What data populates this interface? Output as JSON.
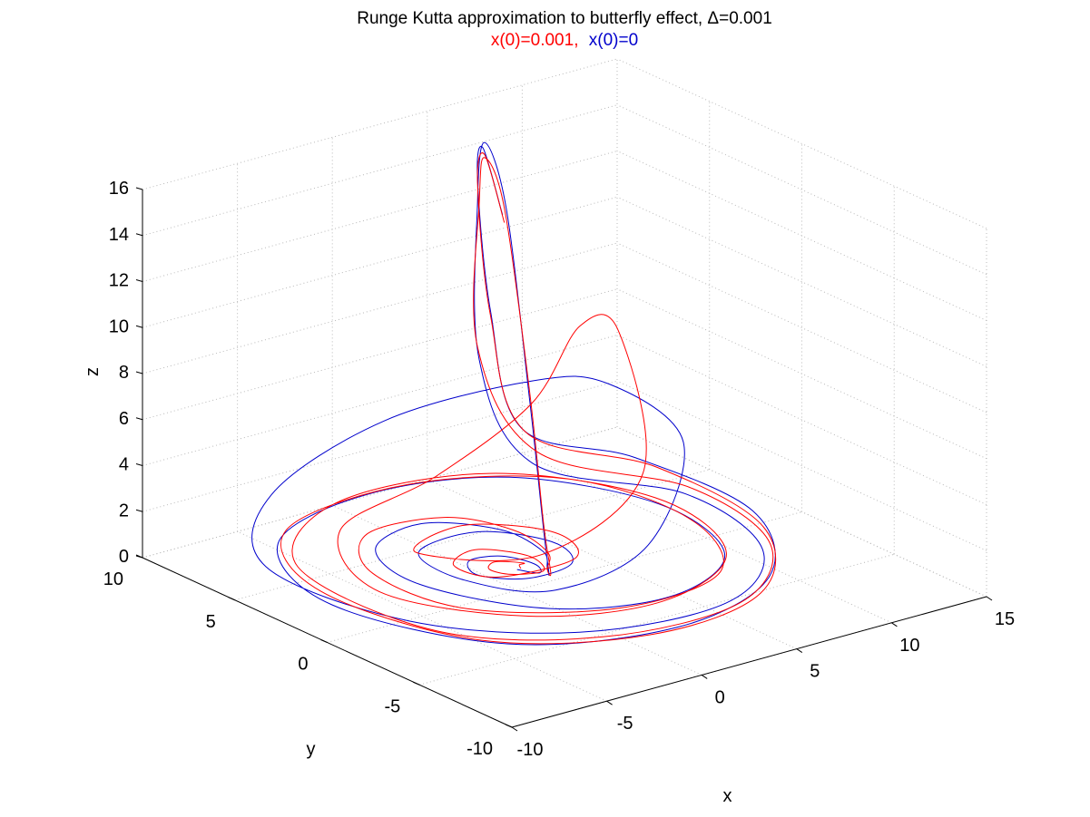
{
  "chart_data": {
    "type": "line3d",
    "title": "Runge Kutta approximation to butterfly effect, Δ=0.001",
    "subtitle": [
      {
        "text": "x(0)=0.001,",
        "color": "#ff0000"
      },
      {
        "text": "x(0)=0",
        "color": "#0000cc"
      }
    ],
    "xlabel": "x",
    "ylabel": "y",
    "zlabel": "z",
    "xlim": [
      -10,
      15
    ],
    "ylim": [
      -10,
      10
    ],
    "zlim": [
      0,
      16
    ],
    "xticks": [
      "-10",
      "-5",
      "0",
      "5",
      "10",
      "15"
    ],
    "yticks": [
      "-10",
      "-5",
      "0",
      "5",
      "10"
    ],
    "zticks": [
      "0",
      "2",
      "4",
      "6",
      "8",
      "10",
      "12",
      "14",
      "16"
    ],
    "grid": true,
    "view": "3-D box, default perspective",
    "series": [
      {
        "label": "x(0)=0.001",
        "color": "#ff0000",
        "description": "spiral trajectory starting near origin",
        "points": [
          [
            0.2,
            0.0,
            0.9
          ],
          [
            0.9,
            0.8,
            0.6
          ],
          [
            1.5,
            1.2,
            0.4
          ],
          [
            1.0,
            2.2,
            0.2
          ],
          [
            0.1,
            1.6,
            0.3
          ],
          [
            0.3,
            0.6,
            0.4
          ],
          [
            1.8,
            0.4,
            0.3
          ],
          [
            2.5,
            2.0,
            0.2
          ],
          [
            1.2,
            3.5,
            0.2
          ],
          [
            -0.8,
            2.6,
            0.3
          ],
          [
            -0.5,
            0.5,
            0.5
          ],
          [
            2.6,
            -0.5,
            1.0
          ],
          [
            4.2,
            2.4,
            0.7
          ],
          [
            2.2,
            5.2,
            0.4
          ],
          [
            -1.6,
            3.8,
            0.6
          ],
          [
            -0.2,
            -1.6,
            2.2
          ],
          [
            4.3,
            -2.4,
            5.0
          ],
          [
            6.3,
            1.0,
            9.5
          ],
          [
            6.8,
            3.6,
            8.6
          ],
          [
            6.6,
            6.0,
            4.4
          ],
          [
            3.5,
            8.0,
            1.2
          ],
          [
            -2.5,
            7.0,
            0.6
          ],
          [
            -5.3,
            2.0,
            0.4
          ],
          [
            -2.8,
            -3.5,
            0.8
          ],
          [
            2.5,
            -5.3,
            0.9
          ],
          [
            8.4,
            -2.7,
            0.7
          ],
          [
            10.2,
            3.0,
            0.6
          ],
          [
            6.8,
            8.5,
            0.4
          ],
          [
            -0.2,
            9.6,
            0.3
          ],
          [
            -6.2,
            5.5,
            0.4
          ],
          [
            -6.4,
            -2.2,
            0.5
          ],
          [
            -1.5,
            -6.2,
            0.6
          ],
          [
            5.6,
            -6.3,
            0.5
          ],
          [
            11.0,
            -2.4,
            0.4
          ],
          [
            12.4,
            3.4,
            0.4
          ],
          [
            9.6,
            8.8,
            0.6
          ],
          [
            5.6,
            7.9,
            6.4
          ],
          [
            5.8,
            8.0,
            12.7
          ],
          [
            5.2,
            7.1,
            15.0
          ],
          [
            4.2,
            5.0,
            13.8
          ],
          [
            2.8,
            2.2,
            7.2
          ],
          [
            1.6,
            0.2,
            2.4
          ],
          [
            0.9,
            -0.9,
            0.9
          ],
          [
            1.2,
            -0.4,
            0.8
          ],
          [
            2.4,
            0.8,
            0.8
          ],
          [
            3.2,
            3.5,
            0.6
          ],
          [
            2.0,
            6.0,
            0.5
          ],
          [
            -1.6,
            6.5,
            0.4
          ],
          [
            -4.2,
            3.5,
            0.4
          ],
          [
            -3.8,
            -1.2,
            0.5
          ],
          [
            1.0,
            -4.6,
            0.7
          ],
          [
            7.0,
            -3.8,
            0.6
          ],
          [
            10.0,
            1.0,
            0.5
          ],
          [
            9.0,
            6.5,
            0.4
          ],
          [
            3.5,
            9.5,
            0.3
          ],
          [
            -3.8,
            8.6,
            0.3
          ],
          [
            -7.2,
            3.2,
            0.4
          ],
          [
            -5.6,
            -3.8,
            0.5
          ],
          [
            0.2,
            -7.0,
            0.6
          ],
          [
            7.0,
            -6.0,
            0.5
          ],
          [
            12.0,
            -1.0,
            0.4
          ],
          [
            12.6,
            5.4,
            0.5
          ],
          [
            9.0,
            8.8,
            1.6
          ],
          [
            6.2,
            7.8,
            7.6
          ],
          [
            5.9,
            8.2,
            13.2
          ],
          [
            5.1,
            7.0,
            15.2
          ],
          [
            4.0,
            4.8,
            13.3
          ]
        ]
      },
      {
        "label": "x(0)=0",
        "color": "#0000cc",
        "description": "trajectory starting at origin, diverging after first loops",
        "points": [
          [
            0.0,
            0.0,
            0.9
          ],
          [
            1.0,
            -0.2,
            0.6
          ],
          [
            1.8,
            0.9,
            0.4
          ],
          [
            1.6,
            2.5,
            0.2
          ],
          [
            0.2,
            2.8,
            0.2
          ],
          [
            -0.7,
            1.4,
            0.3
          ],
          [
            0.4,
            -0.2,
            0.5
          ],
          [
            2.6,
            -0.3,
            0.7
          ],
          [
            3.8,
            2.0,
            0.5
          ],
          [
            2.4,
            4.6,
            0.3
          ],
          [
            -1.2,
            4.1,
            0.4
          ],
          [
            -2.0,
            0.8,
            0.6
          ],
          [
            -0.2,
            -2.3,
            0.9
          ],
          [
            3.6,
            -3.4,
            2.4
          ],
          [
            7.2,
            -1.6,
            5.4
          ],
          [
            6.6,
            1.8,
            6.8
          ],
          [
            5.3,
            4.6,
            6.2
          ],
          [
            1.2,
            8.4,
            4.0
          ],
          [
            -3.9,
            9.3,
            1.6
          ],
          [
            -7.4,
            6.0,
            0.5
          ],
          [
            -6.4,
            -0.8,
            0.4
          ],
          [
            -2.0,
            -5.6,
            0.7
          ],
          [
            5.0,
            -6.2,
            0.6
          ],
          [
            10.2,
            -2.8,
            0.5
          ],
          [
            11.8,
            3.0,
            0.4
          ],
          [
            8.8,
            8.2,
            0.5
          ],
          [
            5.4,
            7.6,
            6.0
          ],
          [
            5.8,
            8.1,
            12.6
          ],
          [
            5.3,
            7.2,
            15.6
          ],
          [
            4.1,
            4.8,
            13.9
          ],
          [
            2.6,
            2.0,
            7.0
          ],
          [
            1.4,
            0.0,
            2.3
          ],
          [
            0.8,
            -0.9,
            0.9
          ],
          [
            1.3,
            -0.3,
            0.8
          ],
          [
            2.5,
            1.2,
            0.7
          ],
          [
            2.8,
            3.8,
            0.6
          ],
          [
            0.8,
            6.0,
            0.5
          ],
          [
            -2.4,
            5.2,
            0.4
          ],
          [
            -3.6,
            1.5,
            0.5
          ],
          [
            -1.4,
            -3.2,
            0.7
          ],
          [
            3.6,
            -4.6,
            0.6
          ],
          [
            8.6,
            -2.4,
            0.5
          ],
          [
            10.2,
            2.8,
            0.4
          ],
          [
            7.2,
            7.8,
            0.4
          ],
          [
            1.4,
            9.6,
            0.3
          ],
          [
            -5.0,
            7.8,
            0.3
          ],
          [
            -7.8,
            2.0,
            0.4
          ],
          [
            -5.0,
            -4.6,
            0.5
          ],
          [
            1.6,
            -7.0,
            0.6
          ],
          [
            8.4,
            -5.0,
            0.5
          ],
          [
            12.8,
            0.4,
            0.4
          ],
          [
            12.4,
            6.4,
            0.6
          ],
          [
            8.8,
            8.8,
            1.8
          ],
          [
            6.2,
            7.8,
            7.8
          ],
          [
            5.9,
            8.2,
            13.4
          ],
          [
            5.2,
            7.2,
            15.4
          ],
          [
            4.0,
            4.9,
            13.6
          ]
        ]
      }
    ]
  }
}
